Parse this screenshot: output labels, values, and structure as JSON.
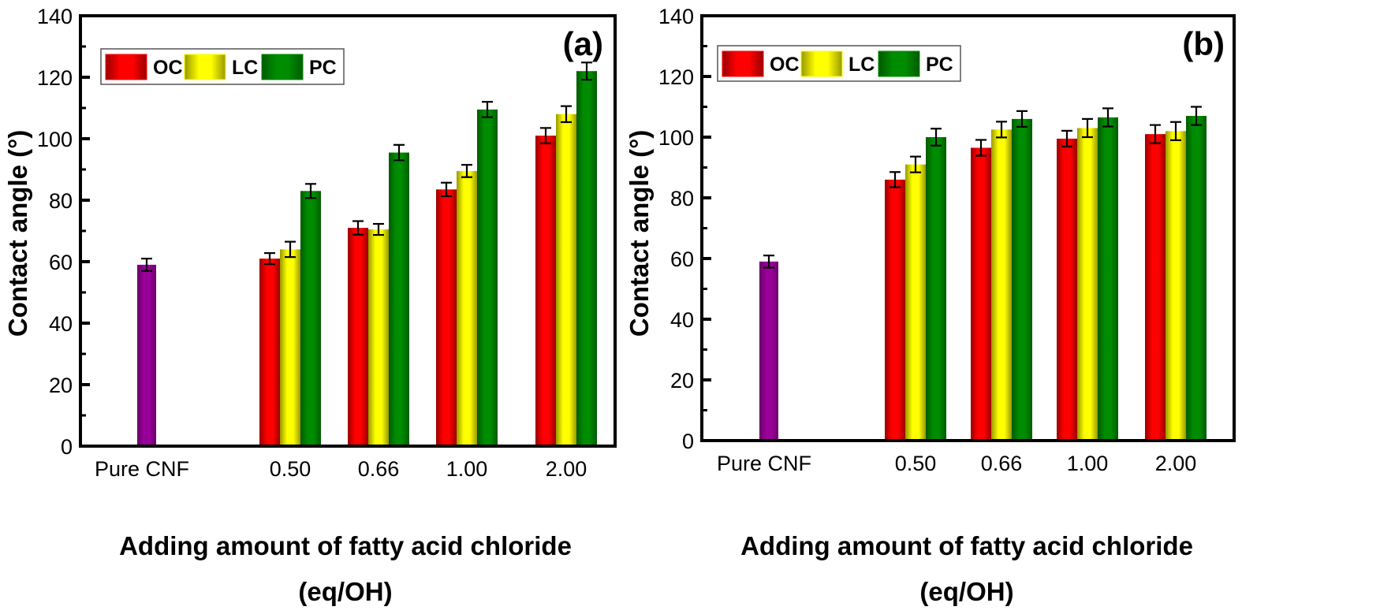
{
  "chart_data": [
    {
      "type": "bar",
      "panel_label": "(a)",
      "title": "",
      "xlabel_line1": "Adding amount of fatty acid chloride",
      "xlabel_line2": "(eq/OH)",
      "ylabel": "Contact angle (°)",
      "ylim": [
        0,
        140
      ],
      "yticks": [
        0,
        20,
        40,
        60,
        80,
        100,
        120,
        140
      ],
      "grid": false,
      "legend_position": "top-left",
      "categories": [
        "Pure CNF",
        "0.50",
        "0.66",
        "1.00",
        "2.00"
      ],
      "reference": {
        "name": "Pure CNF",
        "color": "#990099",
        "value": 59,
        "error": 2
      },
      "series": [
        {
          "name": "OC",
          "color": "#ff0000",
          "dark": "#990000",
          "values": [
            null,
            61,
            71,
            83.5,
            101
          ],
          "errors": [
            null,
            1.8,
            2.2,
            2.2,
            2.5
          ]
        },
        {
          "name": "LC",
          "color": "#ffff00",
          "dark": "#999900",
          "values": [
            null,
            64,
            70.5,
            89.5,
            108
          ],
          "errors": [
            null,
            2.5,
            1.8,
            2.0,
            2.6
          ]
        },
        {
          "name": "PC",
          "color": "#008c00",
          "dark": "#005a00",
          "values": [
            null,
            83,
            95.5,
            109.5,
            122
          ],
          "errors": [
            null,
            2.3,
            2.5,
            2.5,
            2.8
          ]
        }
      ]
    },
    {
      "type": "bar",
      "panel_label": "(b)",
      "title": "",
      "xlabel_line1": "Adding amount of fatty acid chloride",
      "xlabel_line2": "(eq/OH)",
      "ylabel": "Contact angle (°)",
      "ylim": [
        0,
        140
      ],
      "yticks": [
        0,
        20,
        40,
        60,
        80,
        100,
        120,
        140
      ],
      "grid": false,
      "legend_position": "top-left",
      "categories": [
        "Pure CNF",
        "0.50",
        "0.66",
        "1.00",
        "2.00"
      ],
      "reference": {
        "name": "Pure CNF",
        "color": "#990099",
        "value": 59,
        "error": 2
      },
      "series": [
        {
          "name": "OC",
          "color": "#ff0000",
          "dark": "#990000",
          "values": [
            null,
            86,
            96.5,
            99.5,
            101
          ],
          "errors": [
            null,
            2.5,
            2.6,
            2.6,
            3.0
          ]
        },
        {
          "name": "LC",
          "color": "#ffff00",
          "dark": "#999900",
          "values": [
            null,
            91,
            102.5,
            103,
            102
          ],
          "errors": [
            null,
            2.6,
            2.6,
            3.0,
            3.0
          ]
        },
        {
          "name": "PC",
          "color": "#008c00",
          "dark": "#005a00",
          "values": [
            null,
            100,
            106,
            106.5,
            107
          ],
          "errors": [
            null,
            2.8,
            2.6,
            3.0,
            3.0
          ]
        }
      ]
    }
  ]
}
